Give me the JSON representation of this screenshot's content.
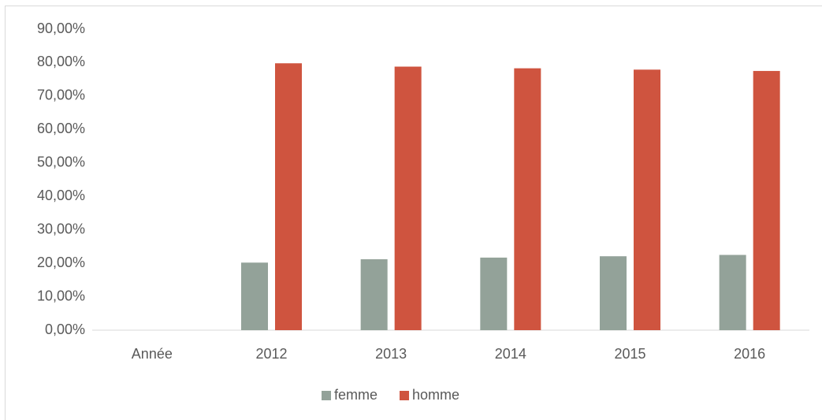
{
  "chart_data": {
    "type": "bar",
    "categories": [
      "Année",
      "2012",
      "2013",
      "2014",
      "2015",
      "2016"
    ],
    "series": [
      {
        "name": "femme",
        "color": "#93a299",
        "values": [
          null,
          20.2,
          21.2,
          21.7,
          22.1,
          22.5
        ]
      },
      {
        "name": "homme",
        "color": "#cf543f",
        "values": [
          null,
          79.8,
          78.8,
          78.3,
          77.9,
          77.5
        ]
      }
    ],
    "ylim": [
      0,
      90
    ],
    "yticks": [
      {
        "value": 0,
        "label": "0,00%"
      },
      {
        "value": 10,
        "label": "10,00%"
      },
      {
        "value": 20,
        "label": "20,00%"
      },
      {
        "value": 30,
        "label": "30,00%"
      },
      {
        "value": 40,
        "label": "40,00%"
      },
      {
        "value": 50,
        "label": "50,00%"
      },
      {
        "value": 60,
        "label": "60,00%"
      },
      {
        "value": 70,
        "label": "70,00%"
      },
      {
        "value": 80,
        "label": "80,00%"
      },
      {
        "value": 90,
        "label": "90,00%"
      }
    ],
    "grid": false,
    "legend": "bottom"
  }
}
